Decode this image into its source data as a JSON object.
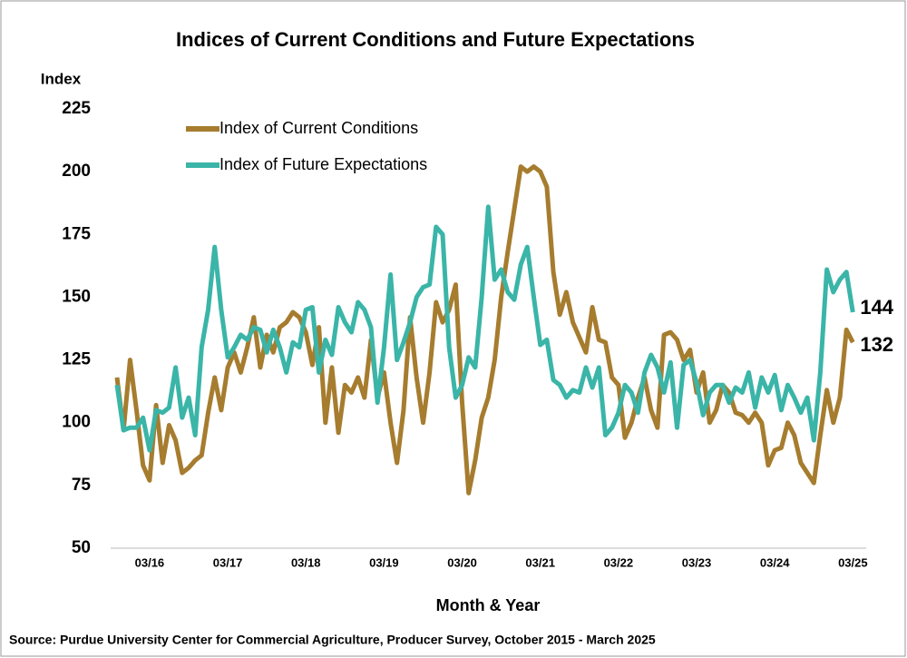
{
  "chart_data": {
    "type": "line",
    "title": "Indices of Current Conditions and Future Expectations",
    "y_label": "Index",
    "x_label": "Month & Year",
    "source": "Source: Purdue University Center for Commercial Agriculture, Producer Survey, October 2015 - March 2025",
    "categories": [
      null,
      null,
      null,
      null,
      null,
      "03/16",
      null,
      null,
      null,
      null,
      null,
      null,
      null,
      null,
      null,
      null,
      null,
      "03/17",
      null,
      null,
      null,
      null,
      null,
      null,
      null,
      null,
      null,
      null,
      null,
      "03/18",
      null,
      null,
      null,
      null,
      null,
      null,
      null,
      null,
      null,
      null,
      null,
      "03/19",
      null,
      null,
      null,
      null,
      null,
      null,
      null,
      null,
      null,
      null,
      null,
      "03/20",
      null,
      null,
      null,
      null,
      null,
      null,
      null,
      null,
      null,
      null,
      null,
      "03/21",
      null,
      null,
      null,
      null,
      null,
      null,
      null,
      null,
      null,
      null,
      null,
      "03/22",
      null,
      null,
      null,
      null,
      null,
      null,
      null,
      null,
      null,
      null,
      null,
      "03/23",
      null,
      null,
      null,
      null,
      null,
      null,
      null,
      null,
      null,
      null,
      null,
      "03/24",
      null,
      null,
      null,
      null,
      null,
      null,
      null,
      null,
      null,
      null,
      null,
      "03/25"
    ],
    "series": [
      {
        "name": "Index of Current Conditions",
        "color": "#a67c2e",
        "values": [
          118,
          97,
          125,
          105,
          83,
          77,
          107,
          84,
          99,
          93,
          80,
          82,
          85,
          87,
          104,
          118,
          105,
          122,
          128,
          120,
          130,
          142,
          122,
          135,
          128,
          138,
          140,
          144,
          142,
          136,
          123,
          138,
          100,
          122,
          96,
          115,
          112,
          118,
          110,
          133,
          110,
          120,
          100,
          84,
          105,
          142,
          118,
          100,
          120,
          148,
          140,
          145,
          155,
          108,
          72,
          85,
          102,
          110,
          125,
          150,
          168,
          185,
          202,
          200,
          202,
          200,
          194,
          160,
          143,
          152,
          140,
          134,
          128,
          146,
          133,
          132,
          118,
          115,
          94,
          100,
          110,
          118,
          105,
          98,
          135,
          136,
          133,
          125,
          129,
          112,
          120,
          100,
          105,
          115,
          112,
          104,
          103,
          100,
          104,
          100,
          83,
          89,
          90,
          100,
          95,
          84,
          80,
          76,
          95,
          113,
          100,
          110,
          137,
          132
        ],
        "end_label": "132"
      },
      {
        "name": "Index of Future Expectations",
        "color": "#3ab5a8",
        "values": [
          115,
          97,
          98,
          98,
          102,
          89,
          105,
          104,
          106,
          122,
          102,
          110,
          95,
          130,
          145,
          170,
          145,
          126,
          130,
          135,
          133,
          138,
          137,
          128,
          137,
          130,
          120,
          132,
          130,
          145,
          146,
          120,
          133,
          127,
          146,
          140,
          136,
          148,
          145,
          138,
          108,
          130,
          159,
          125,
          132,
          140,
          150,
          154,
          155,
          178,
          175,
          130,
          110,
          115,
          126,
          122,
          150,
          186,
          157,
          161,
          152,
          149,
          163,
          170,
          150,
          131,
          133,
          117,
          115,
          110,
          113,
          112,
          122,
          114,
          122,
          95,
          98,
          104,
          115,
          112,
          104,
          120,
          127,
          122,
          112,
          124,
          98,
          123,
          125,
          116,
          103,
          112,
          115,
          115,
          108,
          114,
          112,
          120,
          106,
          118,
          112,
          119,
          105,
          115,
          110,
          104,
          110,
          93,
          120,
          161,
          152,
          157,
          160,
          144
        ],
        "end_label": "144"
      }
    ],
    "ylim": [
      50,
      225
    ],
    "yticks": [
      50,
      75,
      100,
      125,
      150,
      175,
      200,
      225
    ],
    "grid": false
  }
}
